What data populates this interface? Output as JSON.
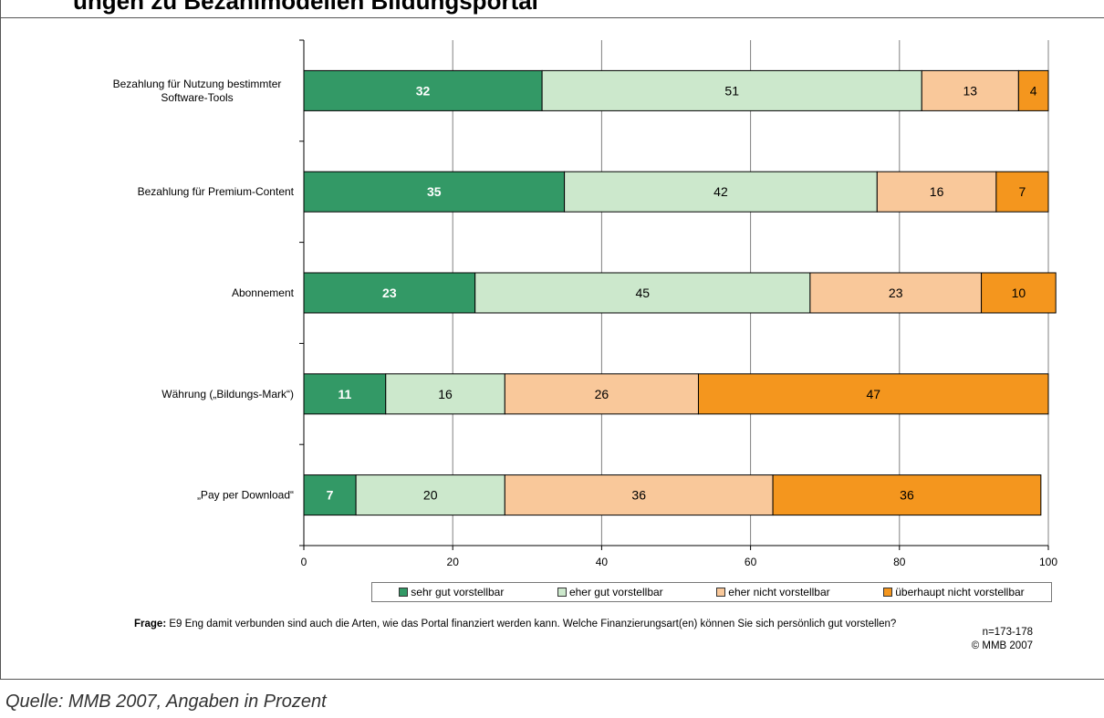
{
  "page": {
    "title": "ungen zu Bezahlmodellen Bildungsportal",
    "question_label": "Frage:",
    "question_text": "E9 Eng damit verbunden sind auch die Arten, wie das Portal finanziert werden kann. Welche Finanzierungsart(en) können Sie sich persönlich gut vorstellen?",
    "sample_size": "n=173-178",
    "copyright": "© MMB 2007",
    "source": "Quelle: MMB 2007, Angaben in Prozent"
  },
  "chart_data": {
    "type": "bar",
    "orientation": "horizontal-stacked-100",
    "categories": [
      "Bezahlung für Nutzung bestimmter Software-Tools",
      "Bezahlung für Premium-Content",
      "Abonnement",
      "Währung („Bildungs-Mark“)",
      "„Pay per Download“"
    ],
    "category_lines": [
      [
        "Bezahlung für Nutzung bestimmter",
        "Software-Tools"
      ],
      [
        "Bezahlung für Premium-Content"
      ],
      [
        "Abonnement"
      ],
      [
        "Währung („Bildungs-Mark“)"
      ],
      [
        "„Pay per Download“"
      ]
    ],
    "series": [
      {
        "name": "sehr gut vorstellbar",
        "color": "#339966",
        "label_color": "#ffffff",
        "label_bold": true,
        "values": [
          32,
          35,
          23,
          11,
          7
        ]
      },
      {
        "name": "eher gut vorstellbar",
        "color": "#cce8cc",
        "label_color": "#000000",
        "label_bold": false,
        "values": [
          51,
          42,
          45,
          16,
          20
        ]
      },
      {
        "name": "eher nicht vorstellbar",
        "color": "#f9c89a",
        "label_color": "#000000",
        "label_bold": false,
        "values": [
          13,
          16,
          23,
          26,
          36
        ]
      },
      {
        "name": "überhaupt nicht vorstellbar",
        "color": "#f4961e",
        "label_color": "#000000",
        "label_bold": false,
        "values": [
          4,
          7,
          10,
          47,
          36
        ]
      }
    ],
    "x_ticks": [
      0,
      20,
      40,
      60,
      80,
      100
    ],
    "xlim": [
      0,
      100
    ],
    "grid": true,
    "legend_position": "bottom"
  }
}
